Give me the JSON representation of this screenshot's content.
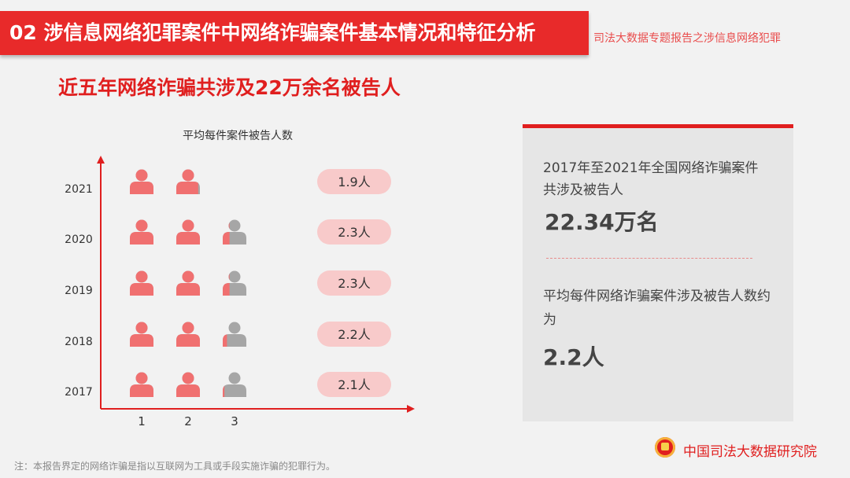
{
  "header": {
    "title": "02  涉信息网络犯罪案件中网络诈骗案件基本情况和特征分析",
    "subtitle": "司法大数据专题报告之涉信息网络犯罪"
  },
  "headline": "近五年网络诈骗共涉及22万余名被告人",
  "chart_data": {
    "type": "pictogram",
    "title": "平均每件案件被告人数",
    "categories": [
      "2021",
      "2020",
      "2019",
      "2018",
      "2017"
    ],
    "values": [
      1.9,
      2.3,
      2.3,
      2.2,
      2.1
    ],
    "value_labels": [
      "1.9人",
      "2.3人",
      "2.3人",
      "2.2人",
      "2.1人"
    ],
    "x_ticks": [
      "1",
      "2",
      "3"
    ],
    "xlabel": "",
    "ylabel": "",
    "colors": {
      "filled": "#f07070",
      "empty": "#a6a6a6",
      "axis": "#e01f1f",
      "pill": "#f8caca"
    }
  },
  "panel": {
    "text1": "2017年至2021年全国网络诈骗案件共涉及被告人",
    "value1": "22.34万名",
    "text2": "平均每件网络诈骗案件涉及被告人数约为",
    "value2": "2.2人"
  },
  "footer": {
    "note": "注：本报告界定的网络诈骗是指以互联网为工具或手段实施诈骗的犯罪行为。",
    "org": "中国司法大数据研究院"
  }
}
